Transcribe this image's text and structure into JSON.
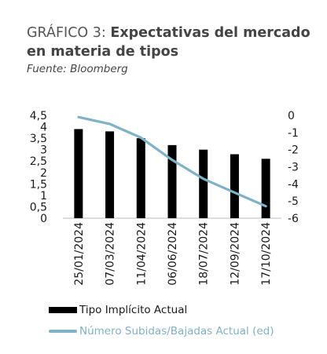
{
  "header": {
    "title_prefix": "GRÁFICO 3: ",
    "title_main": "Expectativas del mercado en materia de tipos",
    "source": "Fuente: Bloomberg"
  },
  "colors": {
    "bar": "#000000",
    "line": "#7fb2c7",
    "axis": "#555555"
  },
  "chart_data": {
    "type": "bar",
    "categories": [
      "25/01/2024",
      "07/03/2024",
      "11/04/2024",
      "06/06/2024",
      "18/07/2024",
      "12/09/2024",
      "17/10/2024"
    ],
    "series": [
      {
        "name": "Tipo Implícito Actual",
        "type": "bar",
        "axis": "left",
        "values": [
          3.9,
          3.8,
          3.5,
          3.2,
          3.0,
          2.8,
          2.6
        ]
      },
      {
        "name": "Número Subidas/Bajadas Actual (ed)",
        "type": "line",
        "axis": "right",
        "values": [
          -0.1,
          -0.5,
          -1.3,
          -2.6,
          -3.7,
          -4.5,
          -5.3
        ]
      }
    ],
    "y_left": {
      "min": 0,
      "max": 4.5,
      "ticks": [
        "0",
        "0,5",
        "1",
        "1,5",
        "2",
        "2,5",
        "3",
        "3,5",
        "4",
        "4,5"
      ]
    },
    "y_right": {
      "min": -6,
      "max": 0,
      "ticks": [
        "0",
        "-1",
        "-2",
        "-3",
        "-4",
        "-5",
        "-6"
      ]
    },
    "legend_position": "bottom",
    "grid": false
  }
}
